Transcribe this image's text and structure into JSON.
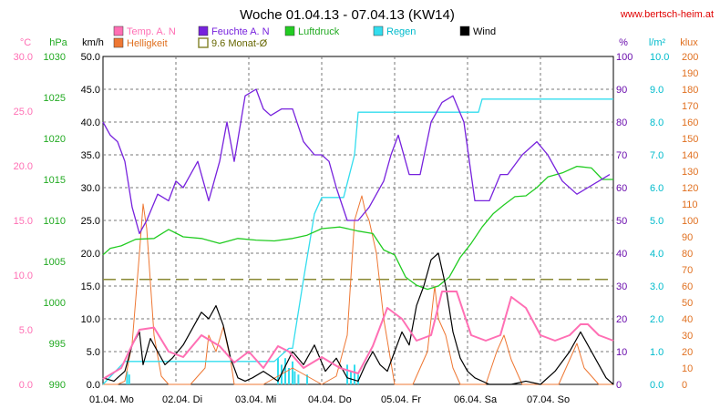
{
  "chart_data": {
    "type": "line",
    "title": "Woche 01.04.13 - 07.04.13 (KW14)",
    "source_label": "www.bertsch-heim.at",
    "x_labels": [
      "01.04. Mo",
      "02.04. Di",
      "03.04. Mi",
      "04.04. Do",
      "05.04. Fr",
      "06.04. Sa",
      "07.04. So"
    ],
    "x_range_days": [
      0,
      7
    ],
    "axes": {
      "temp": {
        "unit": "°C",
        "min": 0,
        "max": 30,
        "step": 5,
        "decimals": 1,
        "color": "#ff6fb4"
      },
      "press": {
        "unit": "hPa",
        "min": 990,
        "max": 1030,
        "step": 5,
        "decimals": 0,
        "color": "#22aa22"
      },
      "wind": {
        "unit": "km/h",
        "min": 0,
        "max": 50,
        "step": 5,
        "decimals": 1,
        "color": "#000000"
      },
      "hum": {
        "unit": "%",
        "min": 0,
        "max": 100,
        "step": 10,
        "decimals": 0,
        "color": "#6a0dad"
      },
      "rain": {
        "unit": "l/m²",
        "min": 0,
        "max": 10,
        "step": 1,
        "decimals": 1,
        "color": "#00cccc"
      },
      "light": {
        "unit": "klux",
        "min": 0,
        "max": 200,
        "step": 10,
        "decimals": 0,
        "color": "#e07020"
      }
    },
    "legend": [
      {
        "label": "Temp. A. N",
        "color": "#ff6fb4",
        "style": "box"
      },
      {
        "label": "Feuchte A. N",
        "color": "#7722dd",
        "style": "box"
      },
      {
        "label": "Luftdruck",
        "color": "#22cc22",
        "style": "box"
      },
      {
        "label": "Regen",
        "color": "#33ddee",
        "style": "box"
      },
      {
        "label": "Wind",
        "color": "#000000",
        "style": "box"
      },
      {
        "label": "Helligkeit",
        "color": "#ee7733",
        "style": "box"
      },
      {
        "label": "9.6 Monat-Ø",
        "color": "#888833",
        "style": "outline"
      }
    ],
    "reference_line": {
      "name": "9.6 Monat-Ø",
      "axis": "temp",
      "value": 9.6,
      "color": "#888833"
    },
    "series": [
      {
        "name": "Feuchte A. N",
        "axis": "hum",
        "color": "#7722dd",
        "x": [
          0,
          0.1,
          0.2,
          0.3,
          0.4,
          0.5,
          0.6,
          0.75,
          0.9,
          1.0,
          1.1,
          1.2,
          1.3,
          1.45,
          1.6,
          1.7,
          1.8,
          1.95,
          2.1,
          2.2,
          2.3,
          2.45,
          2.6,
          2.75,
          2.9,
          3.0,
          3.1,
          3.2,
          3.35,
          3.5,
          3.65,
          3.75,
          3.85,
          3.95,
          4.05,
          4.2,
          4.35,
          4.5,
          4.65,
          4.8,
          4.95,
          5.1,
          5.3,
          5.45,
          5.55,
          5.75,
          5.95,
          6.1,
          6.3,
          6.5,
          6.65,
          6.8,
          6.95
        ],
        "values": [
          80,
          76,
          74,
          68,
          54,
          46,
          50,
          58,
          56,
          62,
          60,
          64,
          68,
          56,
          68,
          80,
          68,
          88,
          90,
          84,
          82,
          84,
          84,
          74,
          70,
          70,
          68,
          60,
          50,
          50,
          54,
          58,
          62,
          70,
          76,
          64,
          64,
          80,
          86,
          88,
          80,
          56,
          56,
          64,
          64,
          70,
          74,
          70,
          62,
          58,
          60,
          62,
          64
        ]
      },
      {
        "name": "Luftdruck",
        "axis": "press",
        "x": [
          0,
          0.1,
          0.25,
          0.45,
          0.7,
          0.9,
          1.1,
          1.35,
          1.6,
          1.85,
          2.1,
          2.35,
          2.6,
          2.8,
          3.0,
          3.25,
          3.5,
          3.7,
          3.85,
          4.0,
          4.15,
          4.3,
          4.45,
          4.6,
          4.75,
          4.9,
          5.05,
          5.2,
          5.35,
          5.5,
          5.65,
          5.8,
          5.95,
          6.1,
          6.3,
          6.5,
          6.7,
          6.85,
          7.0
        ],
        "values": [
          1005.8,
          1006.6,
          1006.9,
          1007.7,
          1007.8,
          1008.9,
          1008.0,
          1007.8,
          1007.2,
          1007.8,
          1007.6,
          1007.5,
          1007.8,
          1008.2,
          1009.0,
          1009.2,
          1008.7,
          1008.4,
          1006.4,
          1005.8,
          1003.1,
          1002.1,
          1001.6,
          1002.0,
          1003.1,
          1005.5,
          1007.2,
          1009.2,
          1010.8,
          1011.9,
          1012.9,
          1013.0,
          1014.0,
          1015.3,
          1015.8,
          1016.6,
          1016.4,
          1015.0,
          1015.0
        ]
      },
      {
        "name": "Regen",
        "axis": "rain",
        "x": [
          0,
          0.3,
          1.5,
          2.35,
          2.55,
          2.6,
          2.75,
          2.9,
          3.0,
          3.1,
          3.2,
          3.3,
          3.45,
          3.5,
          3.9,
          4.1,
          5.15,
          5.2,
          6.0,
          7.0
        ],
        "values": [
          0,
          0.7,
          0.7,
          0.7,
          1.1,
          1.1,
          3.2,
          5.2,
          5.7,
          5.7,
          5.7,
          5.7,
          7.0,
          8.3,
          8.3,
          8.3,
          8.3,
          8.7,
          8.7,
          8.7
        ]
      },
      {
        "name": "Temp. A. N",
        "axis": "temp",
        "x": [
          0,
          0.25,
          0.5,
          0.7,
          0.9,
          1.1,
          1.35,
          1.6,
          1.8,
          2.0,
          2.2,
          2.4,
          2.55,
          2.75,
          3.0,
          3.25,
          3.5,
          3.7,
          3.9,
          4.1,
          4.3,
          4.5,
          4.65,
          4.85,
          5.05,
          5.25,
          5.45,
          5.6,
          5.8,
          6.0,
          6.2,
          6.4,
          6.55,
          6.65,
          6.8,
          7.0
        ],
        "values": [
          0.5,
          1.5,
          5.0,
          5.2,
          3.0,
          2.5,
          4.5,
          3.5,
          2.0,
          3.0,
          1.5,
          3.5,
          3.0,
          1.5,
          2.5,
          1.5,
          1.0,
          3.5,
          7.0,
          6.0,
          4.0,
          4.5,
          8.5,
          8.5,
          4.5,
          4.0,
          4.5,
          8.0,
          7.0,
          4.5,
          4.0,
          4.5,
          5.5,
          5.5,
          4.5,
          4.0
        ]
      },
      {
        "name": "Helligkeit",
        "axis": "light",
        "x": [
          0,
          0.2,
          0.3,
          0.4,
          0.5,
          0.55,
          0.6,
          0.7,
          0.8,
          0.9,
          1.2,
          1.4,
          1.45,
          1.55,
          1.65,
          1.75,
          1.8,
          2.2,
          2.4,
          2.6,
          2.8,
          3.0,
          3.2,
          3.35,
          3.45,
          3.55,
          3.6,
          3.65,
          3.75,
          3.85,
          4.0,
          4.25,
          4.45,
          4.55,
          4.6,
          4.7,
          4.8,
          4.9,
          5.0,
          5.25,
          5.4,
          5.5,
          5.6,
          5.75,
          6.25,
          6.4,
          6.5,
          6.6,
          6.7,
          6.8,
          7.0
        ],
        "values": [
          0,
          0,
          2,
          25,
          80,
          110,
          95,
          30,
          5,
          0,
          0,
          10,
          30,
          20,
          35,
          15,
          0,
          0,
          5,
          10,
          5,
          0,
          5,
          30,
          100,
          115,
          105,
          100,
          80,
          40,
          0,
          0,
          20,
          60,
          40,
          30,
          10,
          0,
          0,
          0,
          20,
          30,
          15,
          0,
          0,
          15,
          25,
          10,
          5,
          0,
          0
        ]
      },
      {
        "name": "Wind",
        "axis": "wind",
        "x": [
          0,
          0.15,
          0.3,
          0.4,
          0.5,
          0.55,
          0.65,
          0.75,
          0.85,
          0.95,
          1.1,
          1.25,
          1.35,
          1.45,
          1.55,
          1.65,
          1.75,
          1.85,
          1.95,
          2.05,
          2.2,
          2.4,
          2.6,
          2.75,
          2.9,
          3.05,
          3.2,
          3.35,
          3.5,
          3.6,
          3.7,
          3.8,
          3.9,
          4.0,
          4.1,
          4.2,
          4.3,
          4.4,
          4.5,
          4.6,
          4.7,
          4.8,
          4.9,
          5.0,
          5.1,
          5.3,
          5.6,
          5.8,
          6.0,
          6.2,
          6.4,
          6.55,
          6.65,
          6.75,
          6.9,
          7.0
        ],
        "values": [
          1,
          0.5,
          2,
          6,
          8,
          3,
          7,
          5,
          3,
          4,
          6,
          9,
          11,
          10,
          12,
          9,
          4,
          1,
          0.5,
          1,
          2,
          0.5,
          5,
          3,
          6,
          2,
          4,
          1,
          0.5,
          3,
          5,
          3,
          2,
          5,
          8,
          6,
          12,
          15,
          19,
          20,
          15,
          8,
          4,
          2,
          1,
          0,
          0,
          0.5,
          0,
          2,
          5,
          8,
          6,
          4,
          1,
          0
        ]
      }
    ],
    "rain_bars": {
      "axis": "rain",
      "color": "#33ddee",
      "x": [
        0.33,
        0.36,
        2.4,
        2.45,
        2.5,
        2.55,
        2.6,
        2.63,
        2.68,
        2.8,
        3.35,
        3.4,
        3.45,
        3.5
      ],
      "values": [
        0.4,
        0.3,
        0.8,
        0.6,
        0.8,
        0.5,
        0.7,
        0.4,
        0.3,
        0.3,
        0.6,
        0.4,
        0.6,
        0.3
      ]
    }
  }
}
